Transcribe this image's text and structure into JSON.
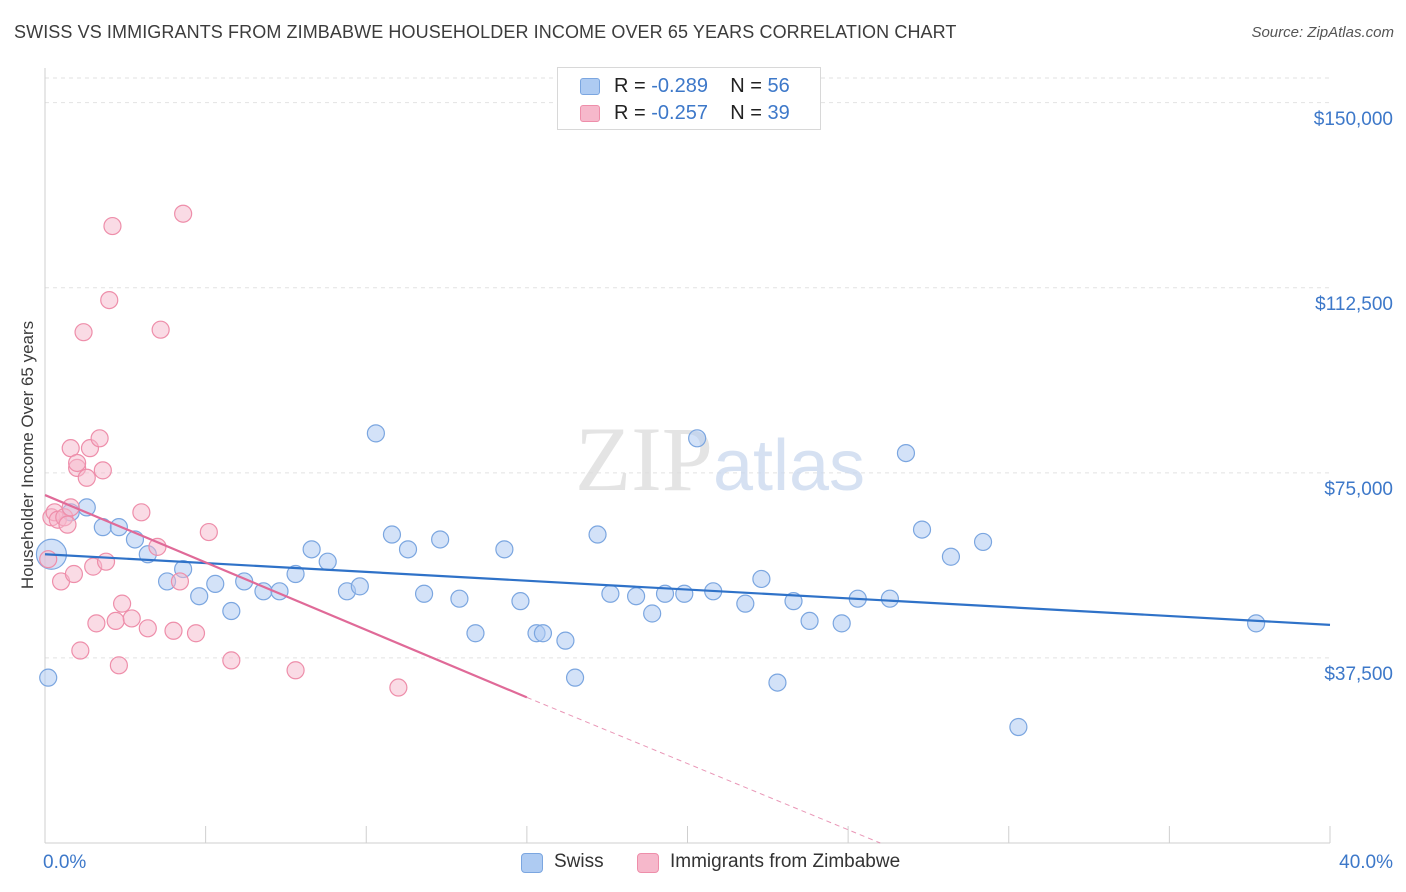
{
  "title": "SWISS VS IMMIGRANTS FROM ZIMBABWE HOUSEHOLDER INCOME OVER 65 YEARS CORRELATION CHART",
  "source": "Source: ZipAtlas.com",
  "watermark": "ZIPatlas",
  "legend_top": [
    {
      "r_label": "R =",
      "r_value": "-0.289",
      "n_label": "N =",
      "n_value": "56"
    },
    {
      "r_label": "R =",
      "r_value": "-0.257",
      "n_label": "N =",
      "n_value": "39"
    }
  ],
  "legend_bottom": [
    "Swiss",
    "Immigrants from Zimbabwe"
  ],
  "colors": {
    "swiss_fill": "#aecbf2",
    "swiss_stroke": "#7ba6e0",
    "swiss_line": "#2f72c8",
    "zim_fill": "#f6b8cb",
    "zim_stroke": "#ee8eaa",
    "zim_line": "#e06a98",
    "tick_text": "#3d78c9",
    "grid": "#e2e2e2"
  },
  "chart_data": {
    "type": "scatter",
    "title": "SWISS VS IMMIGRANTS FROM ZIMBABWE HOUSEHOLDER INCOME OVER 65 YEARS CORRELATION CHART",
    "xlabel": "",
    "ylabel": "Householder Income Over 65 years",
    "xlim": [
      0,
      40
    ],
    "ylim": [
      0,
      155000
    ],
    "x_tick_labels": [
      "0.0%",
      "40.0%"
    ],
    "y_ticks": [
      37500,
      75000,
      112500,
      150000
    ],
    "y_tick_labels": [
      "$37,500",
      "$75,000",
      "$112,500",
      "$150,000"
    ],
    "grid": true,
    "series": [
      {
        "name": "Swiss",
        "r": -0.289,
        "n": 56,
        "trend": {
          "x": [
            0,
            40
          ],
          "y": [
            58500,
            44200
          ]
        },
        "points": [
          {
            "x": 0.2,
            "y": 58500,
            "big": true
          },
          {
            "x": 0.8,
            "y": 67000
          },
          {
            "x": 1.3,
            "y": 68000
          },
          {
            "x": 1.8,
            "y": 64000
          },
          {
            "x": 2.3,
            "y": 64000
          },
          {
            "x": 2.8,
            "y": 61500
          },
          {
            "x": 3.2,
            "y": 58500
          },
          {
            "x": 3.8,
            "y": 53000
          },
          {
            "x": 4.3,
            "y": 55500
          },
          {
            "x": 4.8,
            "y": 50000
          },
          {
            "x": 5.3,
            "y": 52500
          },
          {
            "x": 5.8,
            "y": 47000
          },
          {
            "x": 6.2,
            "y": 53000
          },
          {
            "x": 6.8,
            "y": 51000
          },
          {
            "x": 7.3,
            "y": 51000
          },
          {
            "x": 7.8,
            "y": 54500
          },
          {
            "x": 8.3,
            "y": 59500
          },
          {
            "x": 8.8,
            "y": 57000
          },
          {
            "x": 9.4,
            "y": 51000
          },
          {
            "x": 9.8,
            "y": 52000
          },
          {
            "x": 10.3,
            "y": 83000
          },
          {
            "x": 10.8,
            "y": 62500
          },
          {
            "x": 11.3,
            "y": 59500
          },
          {
            "x": 11.8,
            "y": 50500
          },
          {
            "x": 12.3,
            "y": 61500
          },
          {
            "x": 12.9,
            "y": 49500
          },
          {
            "x": 13.4,
            "y": 42500
          },
          {
            "x": 14.3,
            "y": 59500
          },
          {
            "x": 14.8,
            "y": 49000
          },
          {
            "x": 15.3,
            "y": 42500
          },
          {
            "x": 15.5,
            "y": 42500
          },
          {
            "x": 16.2,
            "y": 41000
          },
          {
            "x": 16.5,
            "y": 33500
          },
          {
            "x": 17.2,
            "y": 62500
          },
          {
            "x": 17.6,
            "y": 50500
          },
          {
            "x": 18.4,
            "y": 50000
          },
          {
            "x": 18.9,
            "y": 46500
          },
          {
            "x": 19.3,
            "y": 50500
          },
          {
            "x": 19.9,
            "y": 50500
          },
          {
            "x": 20.3,
            "y": 82000
          },
          {
            "x": 20.8,
            "y": 51000
          },
          {
            "x": 21.8,
            "y": 48500
          },
          {
            "x": 22.3,
            "y": 53500
          },
          {
            "x": 22.8,
            "y": 32500
          },
          {
            "x": 23.3,
            "y": 49000
          },
          {
            "x": 23.8,
            "y": 45000
          },
          {
            "x": 24.8,
            "y": 44500
          },
          {
            "x": 25.3,
            "y": 49500
          },
          {
            "x": 26.3,
            "y": 49500
          },
          {
            "x": 26.8,
            "y": 79000
          },
          {
            "x": 27.3,
            "y": 63500
          },
          {
            "x": 28.2,
            "y": 58000
          },
          {
            "x": 29.2,
            "y": 61000
          },
          {
            "x": 30.3,
            "y": 23500
          },
          {
            "x": 37.7,
            "y": 44500
          },
          {
            "x": 0.1,
            "y": 33500
          }
        ]
      },
      {
        "name": "Immigrants from Zimbabwe",
        "r": -0.257,
        "n": 39,
        "trend": {
          "x": [
            0,
            15
          ],
          "y": [
            70500,
            29500
          ]
        },
        "trend_dashed": {
          "x": [
            15,
            26
          ],
          "y": [
            29500,
            0
          ]
        },
        "points": [
          {
            "x": 0.1,
            "y": 57500
          },
          {
            "x": 0.2,
            "y": 66000
          },
          {
            "x": 0.3,
            "y": 67000
          },
          {
            "x": 0.4,
            "y": 65500
          },
          {
            "x": 0.5,
            "y": 53000
          },
          {
            "x": 0.6,
            "y": 66000
          },
          {
            "x": 0.7,
            "y": 64500
          },
          {
            "x": 0.8,
            "y": 80000
          },
          {
            "x": 0.9,
            "y": 54500
          },
          {
            "x": 1.0,
            "y": 76000
          },
          {
            "x": 1.1,
            "y": 39000
          },
          {
            "x": 1.2,
            "y": 103500
          },
          {
            "x": 1.3,
            "y": 74000
          },
          {
            "x": 1.4,
            "y": 80000
          },
          {
            "x": 1.5,
            "y": 56000
          },
          {
            "x": 1.6,
            "y": 44500
          },
          {
            "x": 1.7,
            "y": 82000
          },
          {
            "x": 1.8,
            "y": 75500
          },
          {
            "x": 1.9,
            "y": 57000
          },
          {
            "x": 2.0,
            "y": 110000
          },
          {
            "x": 2.1,
            "y": 125000
          },
          {
            "x": 2.2,
            "y": 45000
          },
          {
            "x": 2.3,
            "y": 36000
          },
          {
            "x": 2.4,
            "y": 48500
          },
          {
            "x": 2.7,
            "y": 45500
          },
          {
            "x": 3.0,
            "y": 67000
          },
          {
            "x": 3.2,
            "y": 43500
          },
          {
            "x": 3.5,
            "y": 60000
          },
          {
            "x": 3.6,
            "y": 104000
          },
          {
            "x": 4.0,
            "y": 43000
          },
          {
            "x": 4.2,
            "y": 53000
          },
          {
            "x": 4.3,
            "y": 127500
          },
          {
            "x": 4.7,
            "y": 42500
          },
          {
            "x": 5.1,
            "y": 63000
          },
          {
            "x": 5.8,
            "y": 37000
          },
          {
            "x": 7.8,
            "y": 35000
          },
          {
            "x": 11.0,
            "y": 31500
          },
          {
            "x": 1.0,
            "y": 77000
          },
          {
            "x": 0.8,
            "y": 68000
          }
        ]
      }
    ]
  }
}
